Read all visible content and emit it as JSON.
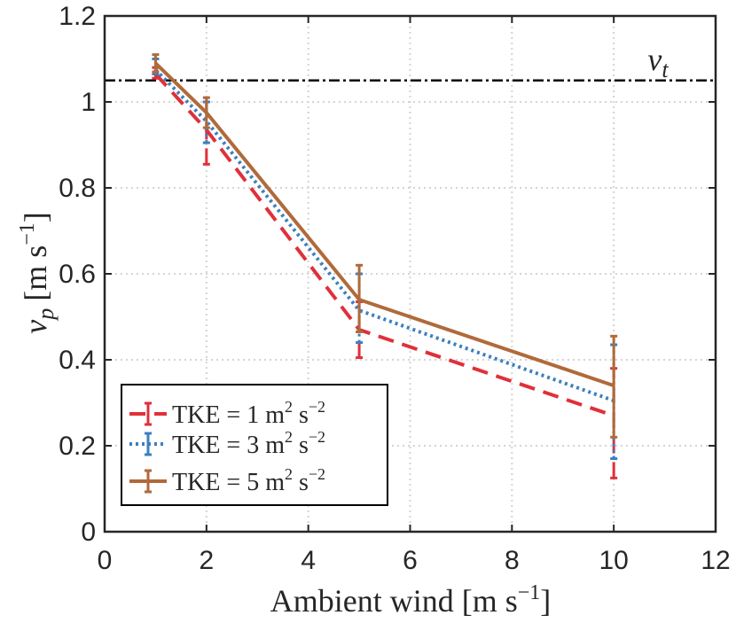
{
  "chart_data": {
    "type": "line",
    "xlabel_main": "Ambient wind [m s",
    "xlabel_sup": "−1",
    "xlabel_end": "]",
    "ylabel_sym": "v",
    "ylabel_sub": "p",
    "ylabel_unit": "[m s",
    "ylabel_sup": "−1",
    "ylabel_end": "]",
    "xlim": [
      0,
      12
    ],
    "ylim": [
      0,
      1.2
    ],
    "xticks": [
      0,
      2,
      4,
      6,
      8,
      10,
      12
    ],
    "xtick_labels": [
      "0",
      "2",
      "4",
      "6",
      "8",
      "10",
      "12"
    ],
    "yticks": [
      0,
      0.2,
      0.4,
      0.6,
      0.8,
      1.0,
      1.2
    ],
    "ytick_labels": [
      "0",
      "0.2",
      "0.4",
      "0.6",
      "0.8",
      "1",
      "1.2"
    ],
    "grid": true,
    "legend_position": "bottom-left",
    "reference_line": {
      "y": 1.05,
      "label_sym": "v",
      "label_sub": "t",
      "color": "#000000",
      "style": "dash-dot"
    },
    "series": [
      {
        "name": "TKE = 1 m² s⁻²",
        "legend_main": "TKE = 1 m",
        "legend_sup1": "2",
        "legend_mid": " s",
        "legend_sup2": "−2",
        "color": "#e0303a",
        "style": "dashed",
        "x": [
          1,
          2,
          5,
          10
        ],
        "y": [
          1.065,
          0.935,
          0.47,
          0.27
        ],
        "err_low": [
          1.055,
          0.855,
          0.405,
          0.125
        ],
        "err_high": [
          1.08,
          1.0,
          0.535,
          0.38
        ]
      },
      {
        "name": "TKE = 3 m² s⁻²",
        "legend_main": "TKE = 3 m",
        "legend_sup1": "2",
        "legend_mid": " s",
        "legend_sup2": "−2",
        "color": "#3d7fbf",
        "style": "dotted",
        "x": [
          1,
          2,
          5,
          10
        ],
        "y": [
          1.075,
          0.955,
          0.515,
          0.305
        ],
        "err_low": [
          1.065,
          0.905,
          0.44,
          0.17
        ],
        "err_high": [
          1.1,
          1.0,
          0.6,
          0.435
        ]
      },
      {
        "name": "TKE = 5 m² s⁻²",
        "legend_main": "TKE = 5 m",
        "legend_sup1": "2",
        "legend_mid": " s",
        "legend_sup2": "−2",
        "color": "#b06a3a",
        "style": "solid",
        "x": [
          1,
          2,
          5,
          10
        ],
        "y": [
          1.09,
          0.975,
          0.54,
          0.34
        ],
        "err_low": [
          1.07,
          0.94,
          0.465,
          0.22
        ],
        "err_high": [
          1.11,
          1.01,
          0.62,
          0.455
        ]
      }
    ]
  }
}
